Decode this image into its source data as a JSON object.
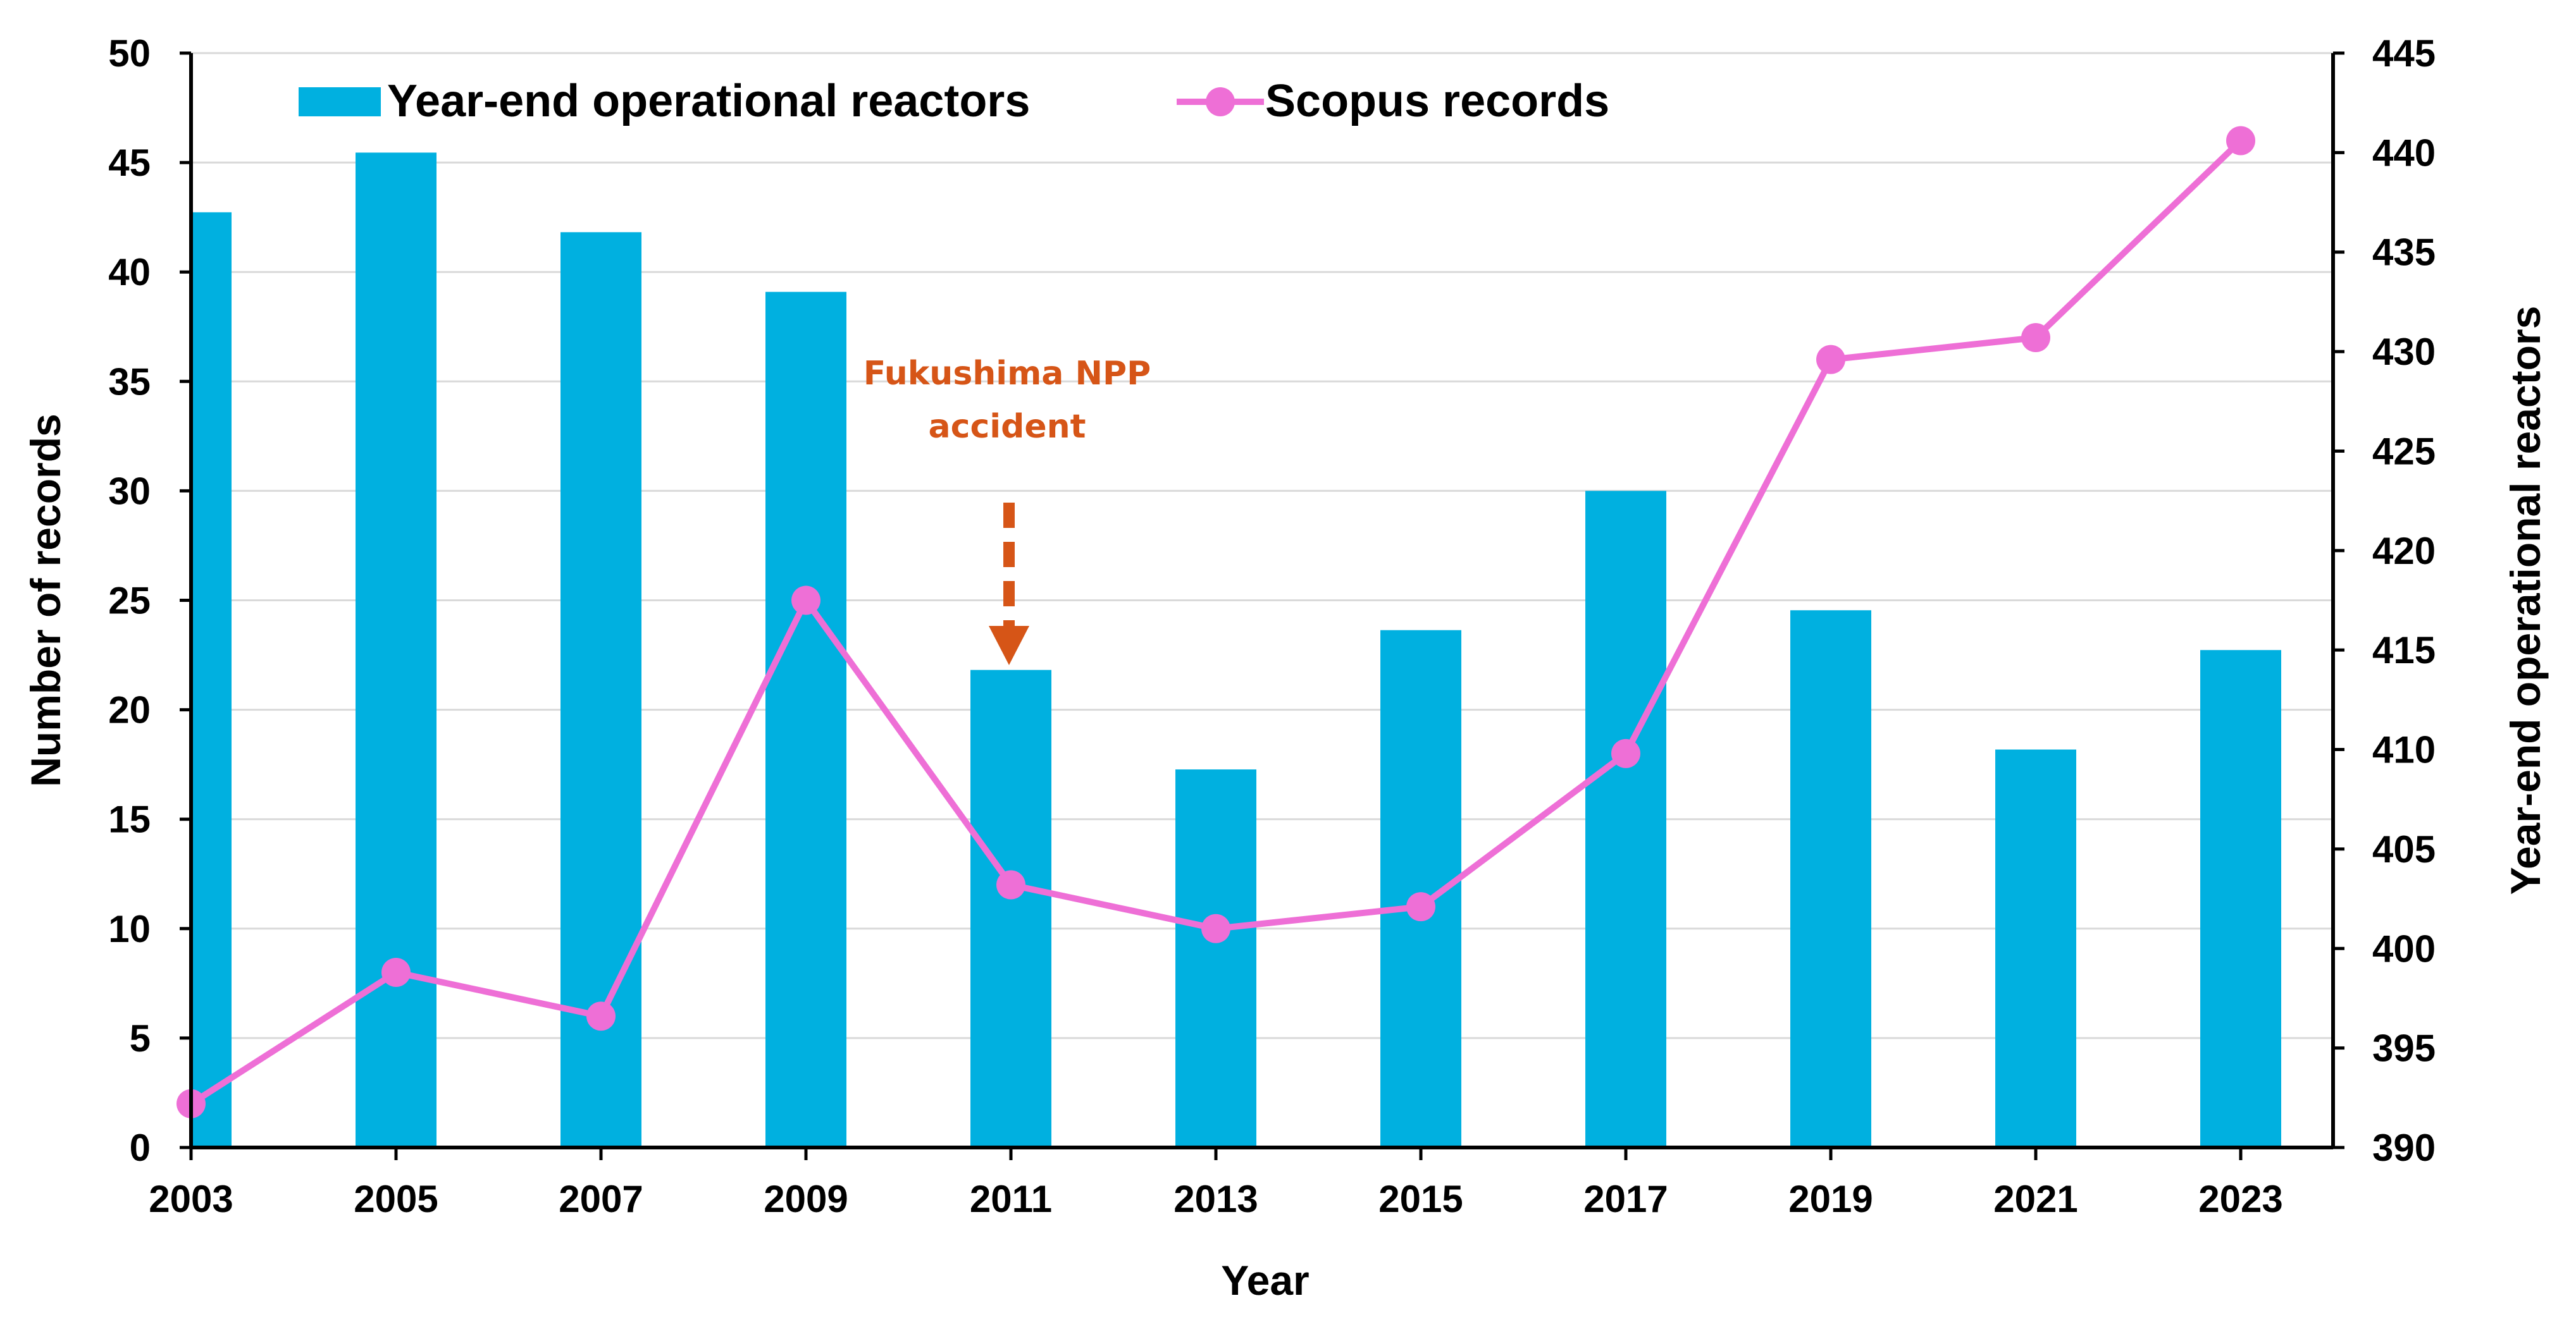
{
  "chart_data": {
    "type": "bar+line",
    "categories": [
      "2003",
      "2005",
      "2007",
      "2009",
      "2011",
      "2013",
      "2015",
      "2017",
      "2019",
      "2021",
      "2023"
    ],
    "series": [
      {
        "name": "Year-end operational reactors",
        "type": "bar",
        "axis": "right",
        "color": "#00b0e0",
        "values": [
          437,
          440,
          436,
          433,
          414,
          409,
          416,
          423,
          417,
          410,
          415
        ]
      },
      {
        "name": "Scopus records",
        "type": "line",
        "axis": "left",
        "color": "#ee6fd6",
        "values": [
          2,
          8,
          6,
          25,
          12,
          10,
          11,
          18,
          36,
          37,
          46
        ]
      }
    ],
    "xlabel": "Year",
    "ylabel_left": "Number of records",
    "ylabel_right": "Year-end operational reactors",
    "ylim_left": [
      0,
      50
    ],
    "yticks_left": [
      0,
      5,
      10,
      15,
      20,
      25,
      30,
      35,
      40,
      45,
      50
    ],
    "ylim_right": [
      390,
      445
    ],
    "yticks_right": [
      390,
      395,
      400,
      405,
      410,
      415,
      420,
      425,
      430,
      435,
      440,
      445
    ],
    "grid": true,
    "legend": "top",
    "annotation": {
      "line1": "Fukushima NPP",
      "line2": "accident",
      "category": "2011",
      "color": "#d65517"
    }
  }
}
